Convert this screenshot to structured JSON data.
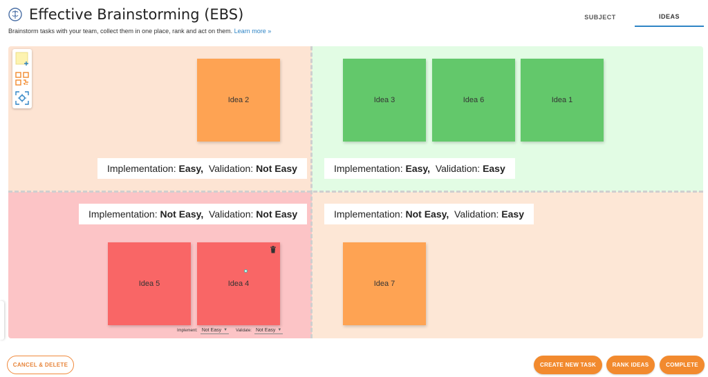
{
  "header": {
    "title": "Effective Brainstorming (EBS)",
    "subtitle": "Brainstorm tasks with your team, collect them in one place, rank and act on them.",
    "learn_more": "Learn more »",
    "tabs": [
      {
        "label": "SUBJECT",
        "active": false
      },
      {
        "label": "IDEAS",
        "active": true
      }
    ]
  },
  "toolbar": {
    "tools": [
      "add-sticky-note-icon",
      "qr-code-icon",
      "focus-center-icon"
    ]
  },
  "quadrants": {
    "top_left": {
      "impl_prefix": "Implementation:",
      "impl_value": "Easy,",
      "valid_prefix": "Validation:",
      "valid_value": "Not Easy",
      "color": "#fde4d3",
      "notes": [
        {
          "label": "Idea 2",
          "color": "#fea353"
        }
      ]
    },
    "top_right": {
      "impl_prefix": "Implementation:",
      "impl_value": "Easy,",
      "valid_prefix": "Validation:",
      "valid_value": "Easy",
      "color": "#e2fce4",
      "notes": [
        {
          "label": "Idea 3",
          "color": "#63c86b"
        },
        {
          "label": "Idea 6",
          "color": "#63c86b"
        },
        {
          "label": "Idea 1",
          "color": "#63c86b"
        }
      ]
    },
    "bottom_left": {
      "impl_prefix": "Implementation:",
      "impl_value": "Not Easy,",
      "valid_prefix": "Validation:",
      "valid_value": "Not Easy",
      "color": "#fcc4c6",
      "notes": [
        {
          "label": "Idea 5",
          "color": "#f96666"
        },
        {
          "label": "Idea 4",
          "color": "#f96666"
        }
      ]
    },
    "bottom_right": {
      "impl_prefix": "Implementation:",
      "impl_value": "Not Easy,",
      "valid_prefix": "Validation:",
      "valid_value": "Easy",
      "color": "#fde7d6",
      "notes": [
        {
          "label": "Idea 7",
          "color": "#fea353"
        }
      ]
    }
  },
  "selected_note": {
    "implement_label": "Implement:",
    "implement_value": "Not Easy",
    "validate_label": "Validate:",
    "validate_value": "Not Easy"
  },
  "footer": {
    "cancel_delete": "CANCEL & DELETE",
    "create_new_task": "CREATE NEW TASK",
    "rank_ideas": "RANK IDEAS",
    "complete": "COMPLETE",
    "accent_color": "#f28a2e"
  }
}
